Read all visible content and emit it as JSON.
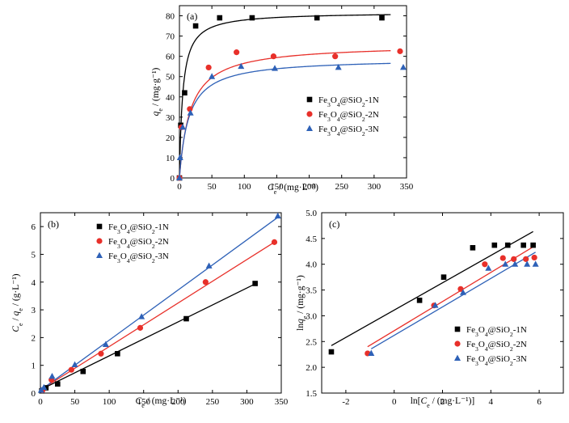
{
  "chart_data": [
    {
      "panel": "(a)",
      "type": "scatter",
      "title": "",
      "xlabel": "Ce / (mg·L⁻¹)",
      "ylabel": "qe / (mg·g⁻¹)",
      "xlim": [
        0,
        350
      ],
      "ylim": [
        0,
        85
      ],
      "xticks": [
        0,
        50,
        100,
        150,
        200,
        250,
        300,
        350
      ],
      "yticks": [
        0,
        10,
        20,
        30,
        40,
        50,
        60,
        70,
        80
      ],
      "legend_position": "center-right",
      "series": [
        {
          "name": "Fe3O4@SiO2-1N",
          "marker": "square",
          "color": "#000000",
          "x": [
            0,
            2,
            8,
            25,
            62,
            112,
            212,
            312
          ],
          "y": [
            0,
            26,
            42,
            75,
            79,
            79,
            79,
            79
          ],
          "fit": {
            "model": "Langmuir",
            "qmax": 81.8,
            "K": 0.2
          }
        },
        {
          "name": "Fe3O4@SiO2-2N",
          "marker": "circle",
          "color": "#e8302a",
          "x": [
            0,
            3,
            16,
            45,
            88,
            145,
            240,
            340
          ],
          "y": [
            0,
            25,
            34,
            54.5,
            62,
            60,
            60,
            62.5
          ],
          "fit": {
            "model": "Langmuir",
            "qmax": 66,
            "K": 0.06
          }
        },
        {
          "name": "Fe3O4@SiO2-3N",
          "marker": "triangle",
          "color": "#2e61b7",
          "x": [
            0,
            1,
            5,
            17,
            50,
            95,
            147,
            245,
            345
          ],
          "y": [
            0,
            10,
            25,
            32,
            50,
            55,
            54,
            54.5,
            54.5
          ],
          "fit": {
            "model": "Langmuir",
            "qmax": 59,
            "K": 0.07
          }
        }
      ]
    },
    {
      "panel": "(b)",
      "type": "scatter",
      "title": "",
      "xlabel": "Ce / (mg·L⁻¹)",
      "ylabel": "Ce / qe / (g·L⁻¹)",
      "xlim": [
        0,
        350
      ],
      "ylim": [
        0,
        6.5
      ],
      "xticks": [
        0,
        50,
        100,
        150,
        200,
        250,
        300,
        350
      ],
      "yticks": [
        0,
        1,
        2,
        3,
        4,
        5,
        6
      ],
      "legend_position": "top-left",
      "series": [
        {
          "name": "Fe3O4@SiO2-1N",
          "marker": "square",
          "color": "#000000",
          "x": [
            2,
            8,
            25,
            62,
            112,
            212,
            312
          ],
          "y": [
            0.08,
            0.19,
            0.33,
            0.78,
            1.42,
            2.68,
            3.95
          ],
          "fit": {
            "slope": 0.01222,
            "intercept": 0.12
          }
        },
        {
          "name": "Fe3O4@SiO2-2N",
          "marker": "circle",
          "color": "#e8302a",
          "x": [
            3,
            16,
            45,
            88,
            145,
            240,
            340
          ],
          "y": [
            0.1,
            0.48,
            0.84,
            1.42,
            2.35,
            4.0,
            5.44
          ],
          "fit": {
            "slope": 0.01567,
            "intercept": 0.11
          }
        },
        {
          "name": "Fe3O4@SiO2-3N",
          "marker": "triangle",
          "color": "#2e61b7",
          "x": [
            1,
            5,
            17,
            50,
            95,
            147,
            245,
            345
          ],
          "y": [
            0.1,
            0.2,
            0.6,
            1.02,
            1.75,
            2.75,
            4.58,
            6.38
          ],
          "fit": {
            "slope": 0.01807,
            "intercept": 0.1
          }
        }
      ]
    },
    {
      "panel": "(c)",
      "type": "scatter",
      "title": "",
      "xlabel": "ln[Ce / (mg·L⁻¹)]",
      "ylabel": "lnqe / (mg·g⁻¹)",
      "xlim": [
        -3,
        7
      ],
      "ylim": [
        1.5,
        5.0
      ],
      "xticks": [
        -2,
        0,
        2,
        4,
        6
      ],
      "yticks": [
        1.5,
        2.0,
        2.5,
        3.0,
        3.5,
        4.0,
        4.5,
        5.0
      ],
      "legend_position": "bottom-right",
      "series": [
        {
          "name": "Fe3O4@SiO2-1N",
          "marker": "square",
          "color": "#000000",
          "x": [
            -2.6,
            1.05,
            2.05,
            3.25,
            4.15,
            4.7,
            5.35,
            5.75
          ],
          "y": [
            2.3,
            3.3,
            3.75,
            4.32,
            4.37,
            4.37,
            4.37,
            4.37
          ],
          "fit": {
            "slope": 0.265,
            "intercept": 3.11
          }
        },
        {
          "name": "Fe3O4@SiO2-2N",
          "marker": "circle",
          "color": "#e8302a",
          "x": [
            -1.1,
            1.65,
            2.75,
            3.75,
            4.5,
            4.95,
            5.45,
            5.8
          ],
          "y": [
            2.27,
            3.2,
            3.52,
            4.0,
            4.12,
            4.1,
            4.1,
            4.13
          ],
          "fit": {
            "slope": 0.283,
            "intercept": 2.71
          }
        },
        {
          "name": "Fe3O4@SiO2-3N",
          "marker": "triangle",
          "color": "#2e61b7",
          "x": [
            -0.95,
            1.7,
            2.85,
            3.9,
            4.6,
            5.0,
            5.5,
            5.85
          ],
          "y": [
            2.27,
            3.2,
            3.45,
            3.92,
            4.0,
            4.0,
            4.0,
            4.0
          ],
          "fit": {
            "slope": 0.276,
            "intercept": 2.62
          }
        }
      ]
    }
  ]
}
